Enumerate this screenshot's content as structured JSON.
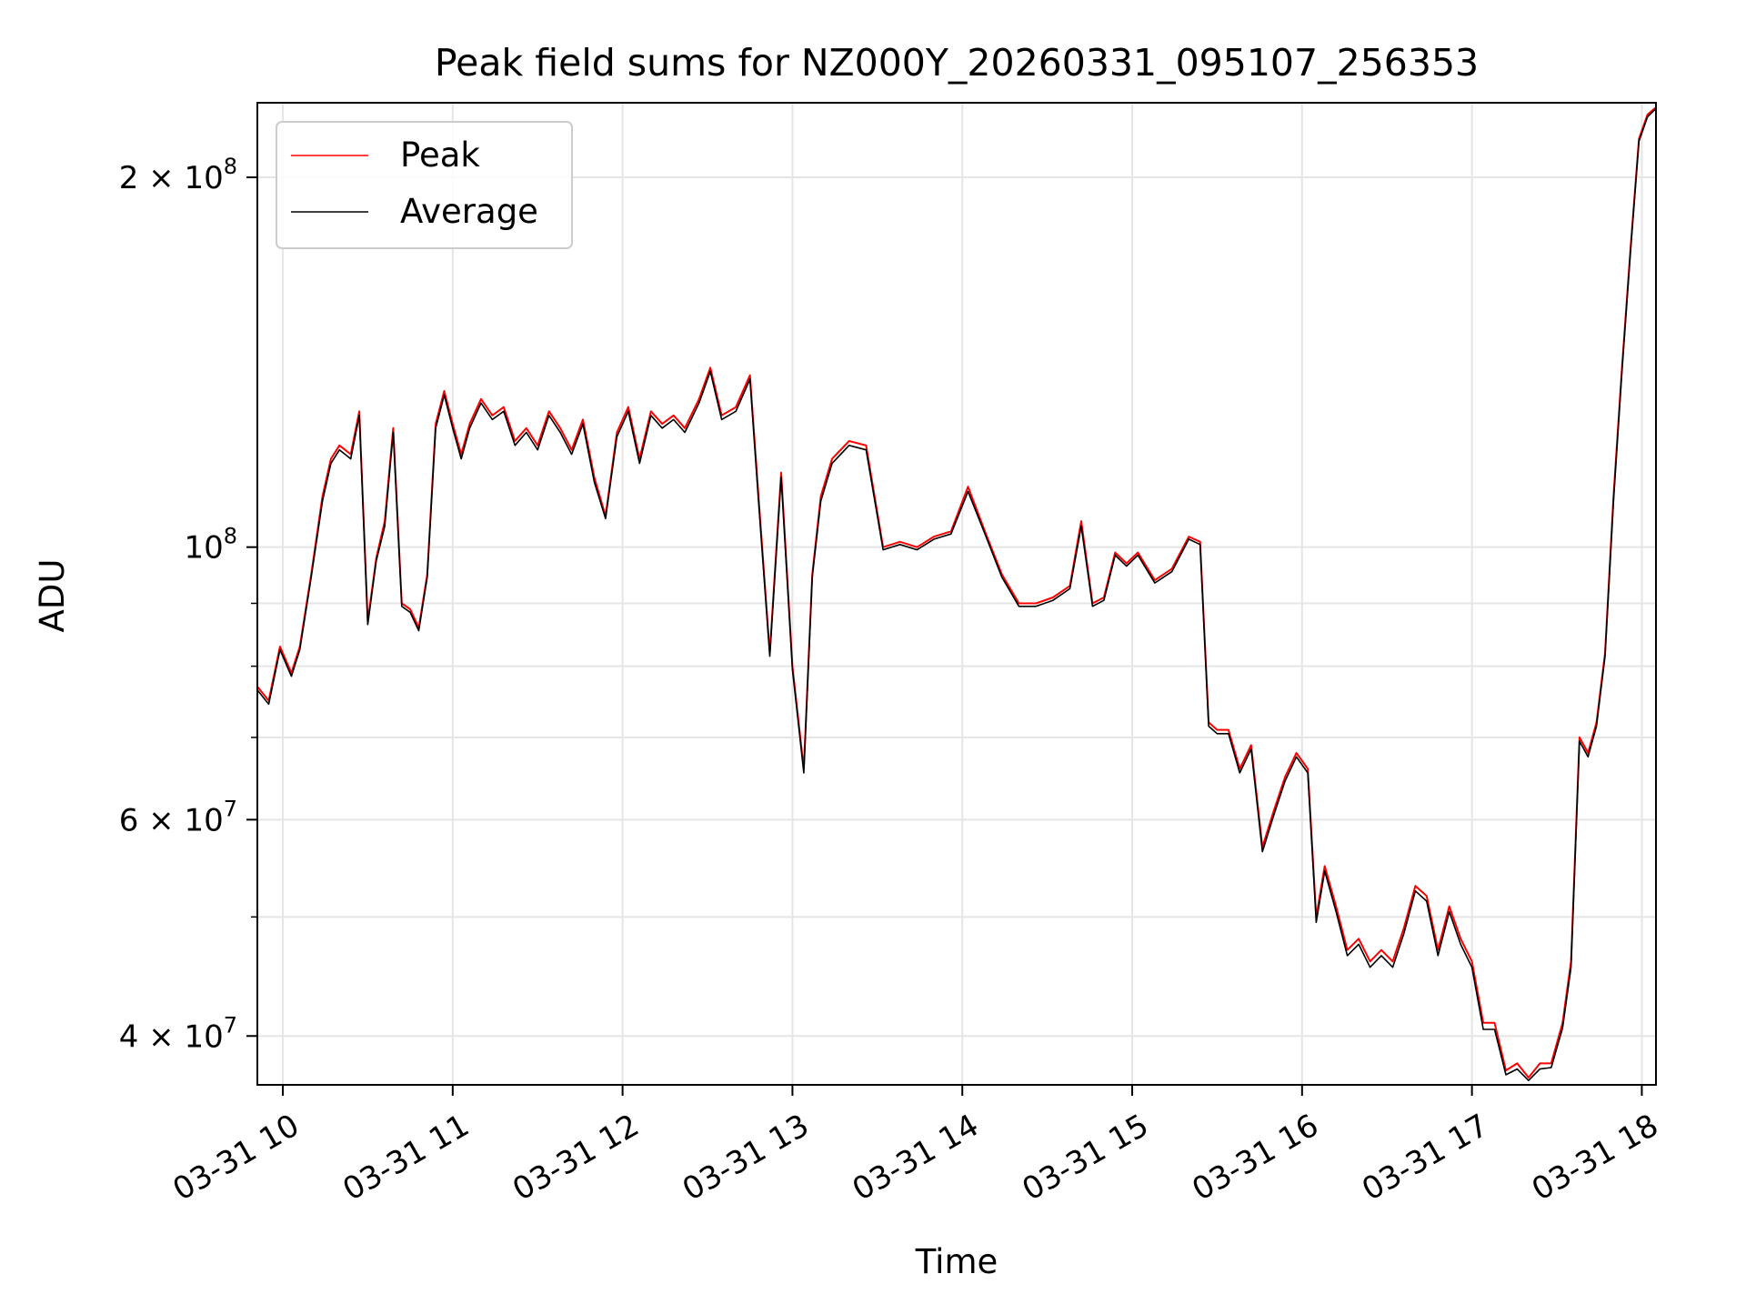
{
  "chart_data": {
    "type": "line",
    "title": "Peak field sums for NZ000Y_20260331_095107_256353",
    "xlabel": "Time",
    "ylabel": "ADU",
    "y_scale": "log",
    "grid": true,
    "legend_placement": "upper-left",
    "xlim": [
      "2026-03-31 09:51",
      "2026-03-31 18:05"
    ],
    "ylim": [
      36500000,
      230000000
    ],
    "x_ticks": [
      {
        "value": "2026-03-31 10:00",
        "label": "03-31 10"
      },
      {
        "value": "2026-03-31 11:00",
        "label": "03-31 11"
      },
      {
        "value": "2026-03-31 12:00",
        "label": "03-31 12"
      },
      {
        "value": "2026-03-31 13:00",
        "label": "03-31 13"
      },
      {
        "value": "2026-03-31 14:00",
        "label": "03-31 14"
      },
      {
        "value": "2026-03-31 15:00",
        "label": "03-31 15"
      },
      {
        "value": "2026-03-31 16:00",
        "label": "03-31 16"
      },
      {
        "value": "2026-03-31 17:00",
        "label": "03-31 17"
      },
      {
        "value": "2026-03-31 18:00",
        "label": "03-31 18"
      }
    ],
    "y_major_ticks": [
      {
        "value": 40000000,
        "mantissa": "4",
        "exponent": "7"
      },
      {
        "value": 60000000,
        "mantissa": "6",
        "exponent": "7"
      },
      {
        "value": 100000000,
        "mantissa": "",
        "exponent": "8"
      },
      {
        "value": 200000000,
        "mantissa": "2",
        "exponent": "8"
      }
    ],
    "y_minor_ticks": [
      50000000,
      70000000,
      80000000,
      90000000
    ],
    "series": [
      {
        "name": "Peak",
        "color": "#ff0000",
        "x": [
          "2026-03-31 09:51",
          "2026-03-31 09:55",
          "2026-03-31 09:59",
          "2026-03-31 10:03",
          "2026-03-31 10:06",
          "2026-03-31 10:10",
          "2026-03-31 10:14",
          "2026-03-31 10:17",
          "2026-03-31 10:20",
          "2026-03-31 10:24",
          "2026-03-31 10:27",
          "2026-03-31 10:30",
          "2026-03-31 10:33",
          "2026-03-31 10:36",
          "2026-03-31 10:39",
          "2026-03-31 10:42",
          "2026-03-31 10:45",
          "2026-03-31 10:48",
          "2026-03-31 10:51",
          "2026-03-31 10:54",
          "2026-03-31 10:57",
          "2026-03-31 11:00",
          "2026-03-31 11:03",
          "2026-03-31 11:06",
          "2026-03-31 11:10",
          "2026-03-31 11:14",
          "2026-03-31 11:18",
          "2026-03-31 11:22",
          "2026-03-31 11:26",
          "2026-03-31 11:30",
          "2026-03-31 11:34",
          "2026-03-31 11:38",
          "2026-03-31 11:42",
          "2026-03-31 11:46",
          "2026-03-31 11:50",
          "2026-03-31 11:54",
          "2026-03-31 11:58",
          "2026-03-31 12:02",
          "2026-03-31 12:06",
          "2026-03-31 12:10",
          "2026-03-31 12:14",
          "2026-03-31 12:18",
          "2026-03-31 12:22",
          "2026-03-31 12:27",
          "2026-03-31 12:31",
          "2026-03-31 12:35",
          "2026-03-31 12:40",
          "2026-03-31 12:45",
          "2026-03-31 12:48",
          "2026-03-31 12:52",
          "2026-03-31 12:56",
          "2026-03-31 13:00",
          "2026-03-31 13:04",
          "2026-03-31 13:07",
          "2026-03-31 13:10",
          "2026-03-31 13:14",
          "2026-03-31 13:20",
          "2026-03-31 13:26",
          "2026-03-31 13:32",
          "2026-03-31 13:38",
          "2026-03-31 13:44",
          "2026-03-31 13:50",
          "2026-03-31 13:56",
          "2026-03-31 14:02",
          "2026-03-31 14:08",
          "2026-03-31 14:14",
          "2026-03-31 14:20",
          "2026-03-31 14:26",
          "2026-03-31 14:32",
          "2026-03-31 14:38",
          "2026-03-31 14:42",
          "2026-03-31 14:46",
          "2026-03-31 14:50",
          "2026-03-31 14:54",
          "2026-03-31 14:58",
          "2026-03-31 15:02",
          "2026-03-31 15:08",
          "2026-03-31 15:14",
          "2026-03-31 15:20",
          "2026-03-31 15:24",
          "2026-03-31 15:27",
          "2026-03-31 15:30",
          "2026-03-31 15:34",
          "2026-03-31 15:38",
          "2026-03-31 15:42",
          "2026-03-31 15:46",
          "2026-03-31 15:50",
          "2026-03-31 15:54",
          "2026-03-31 15:58",
          "2026-03-31 16:02",
          "2026-03-31 16:05",
          "2026-03-31 16:08",
          "2026-03-31 16:12",
          "2026-03-31 16:16",
          "2026-03-31 16:20",
          "2026-03-31 16:24",
          "2026-03-31 16:28",
          "2026-03-31 16:32",
          "2026-03-31 16:36",
          "2026-03-31 16:40",
          "2026-03-31 16:44",
          "2026-03-31 16:48",
          "2026-03-31 16:52",
          "2026-03-31 16:56",
          "2026-03-31 17:00",
          "2026-03-31 17:04",
          "2026-03-31 17:08",
          "2026-03-31 17:12",
          "2026-03-31 17:16",
          "2026-03-31 17:20",
          "2026-03-31 17:24",
          "2026-03-31 17:28",
          "2026-03-31 17:32",
          "2026-03-31 17:35",
          "2026-03-31 17:38",
          "2026-03-31 17:41",
          "2026-03-31 17:44",
          "2026-03-31 17:47",
          "2026-03-31 17:50",
          "2026-03-31 17:53",
          "2026-03-31 17:56",
          "2026-03-31 17:59",
          "2026-03-31 18:02",
          "2026-03-31 18:05"
        ],
        "y": [
          77000000,
          75000000,
          83000000,
          79000000,
          83000000,
          95000000,
          110000000,
          118000000,
          121000000,
          119000000,
          129000000,
          87000000,
          98000000,
          105000000,
          125000000,
          90000000,
          89000000,
          86000000,
          95000000,
          126000000,
          134000000,
          126000000,
          119000000,
          126000000,
          132000000,
          128000000,
          130000000,
          122000000,
          125000000,
          121000000,
          129000000,
          125000000,
          120000000,
          127000000,
          114000000,
          106000000,
          124000000,
          130000000,
          118000000,
          129000000,
          126000000,
          128000000,
          125000000,
          132000000,
          140000000,
          128000000,
          130000000,
          138000000,
          110000000,
          82000000,
          115000000,
          80000000,
          66000000,
          95000000,
          110000000,
          118000000,
          122000000,
          121000000,
          100000000,
          101000000,
          100000000,
          102000000,
          103000000,
          112000000,
          103000000,
          95000000,
          90000000,
          90000000,
          91000000,
          93000000,
          105000000,
          90000000,
          91000000,
          99000000,
          97000000,
          99000000,
          94000000,
          96000000,
          102000000,
          101000000,
          72000000,
          71000000,
          71000000,
          66000000,
          69000000,
          57000000,
          61000000,
          65000000,
          68000000,
          66000000,
          50000000,
          55000000,
          51000000,
          47000000,
          48000000,
          46000000,
          47000000,
          46000000,
          49000000,
          53000000,
          52000000,
          47000000,
          51000000,
          48000000,
          46000000,
          41000000,
          41000000,
          37500000,
          38000000,
          37000000,
          38000000,
          38000000,
          41000000,
          46000000,
          70000000,
          68000000,
          72000000,
          82000000,
          110000000,
          140000000,
          175000000,
          215000000,
          225000000,
          228000000
        ]
      },
      {
        "name": "Average",
        "color": "#000000",
        "x": [
          "2026-03-31 09:51",
          "2026-03-31 09:55",
          "2026-03-31 09:59",
          "2026-03-31 10:03",
          "2026-03-31 10:06",
          "2026-03-31 10:10",
          "2026-03-31 10:14",
          "2026-03-31 10:17",
          "2026-03-31 10:20",
          "2026-03-31 10:24",
          "2026-03-31 10:27",
          "2026-03-31 10:30",
          "2026-03-31 10:33",
          "2026-03-31 10:36",
          "2026-03-31 10:39",
          "2026-03-31 10:42",
          "2026-03-31 10:45",
          "2026-03-31 10:48",
          "2026-03-31 10:51",
          "2026-03-31 10:54",
          "2026-03-31 10:57",
          "2026-03-31 11:00",
          "2026-03-31 11:03",
          "2026-03-31 11:06",
          "2026-03-31 11:10",
          "2026-03-31 11:14",
          "2026-03-31 11:18",
          "2026-03-31 11:22",
          "2026-03-31 11:26",
          "2026-03-31 11:30",
          "2026-03-31 11:34",
          "2026-03-31 11:38",
          "2026-03-31 11:42",
          "2026-03-31 11:46",
          "2026-03-31 11:50",
          "2026-03-31 11:54",
          "2026-03-31 11:58",
          "2026-03-31 12:02",
          "2026-03-31 12:06",
          "2026-03-31 12:10",
          "2026-03-31 12:14",
          "2026-03-31 12:18",
          "2026-03-31 12:22",
          "2026-03-31 12:27",
          "2026-03-31 12:31",
          "2026-03-31 12:35",
          "2026-03-31 12:40",
          "2026-03-31 12:45",
          "2026-03-31 12:48",
          "2026-03-31 12:52",
          "2026-03-31 12:56",
          "2026-03-31 13:00",
          "2026-03-31 13:04",
          "2026-03-31 13:07",
          "2026-03-31 13:10",
          "2026-03-31 13:14",
          "2026-03-31 13:20",
          "2026-03-31 13:26",
          "2026-03-31 13:32",
          "2026-03-31 13:38",
          "2026-03-31 13:44",
          "2026-03-31 13:50",
          "2026-03-31 13:56",
          "2026-03-31 14:02",
          "2026-03-31 14:08",
          "2026-03-31 14:14",
          "2026-03-31 14:20",
          "2026-03-31 14:26",
          "2026-03-31 14:32",
          "2026-03-31 14:38",
          "2026-03-31 14:42",
          "2026-03-31 14:46",
          "2026-03-31 14:50",
          "2026-03-31 14:54",
          "2026-03-31 14:58",
          "2026-03-31 15:02",
          "2026-03-31 15:08",
          "2026-03-31 15:14",
          "2026-03-31 15:20",
          "2026-03-31 15:24",
          "2026-03-31 15:27",
          "2026-03-31 15:30",
          "2026-03-31 15:34",
          "2026-03-31 15:38",
          "2026-03-31 15:42",
          "2026-03-31 15:46",
          "2026-03-31 15:50",
          "2026-03-31 15:54",
          "2026-03-31 15:58",
          "2026-03-31 16:02",
          "2026-03-31 16:05",
          "2026-03-31 16:08",
          "2026-03-31 16:12",
          "2026-03-31 16:16",
          "2026-03-31 16:20",
          "2026-03-31 16:24",
          "2026-03-31 16:28",
          "2026-03-31 16:32",
          "2026-03-31 16:36",
          "2026-03-31 16:40",
          "2026-03-31 16:44",
          "2026-03-31 16:48",
          "2026-03-31 16:52",
          "2026-03-31 16:56",
          "2026-03-31 17:00",
          "2026-03-31 17:04",
          "2026-03-31 17:08",
          "2026-03-31 17:12",
          "2026-03-31 17:16",
          "2026-03-31 17:20",
          "2026-03-31 17:24",
          "2026-03-31 17:28",
          "2026-03-31 17:32",
          "2026-03-31 17:35",
          "2026-03-31 17:38",
          "2026-03-31 17:41",
          "2026-03-31 17:44",
          "2026-03-31 17:47",
          "2026-03-31 17:50",
          "2026-03-31 17:53",
          "2026-03-31 17:56",
          "2026-03-31 17:59",
          "2026-03-31 18:02",
          "2026-03-31 18:05"
        ],
        "y": [
          76500000,
          74500000,
          82500000,
          78500000,
          82500000,
          94500000,
          109000000,
          117000000,
          120000000,
          118000000,
          128000000,
          86500000,
          97500000,
          104000000,
          124000000,
          89500000,
          88500000,
          85500000,
          94500000,
          125000000,
          133000000,
          125000000,
          118000000,
          125000000,
          131000000,
          127000000,
          129000000,
          121000000,
          124000000,
          120000000,
          128000000,
          124000000,
          119000000,
          126000000,
          113000000,
          105500000,
          123000000,
          129000000,
          117000000,
          128000000,
          125000000,
          127000000,
          124000000,
          131000000,
          139000000,
          127000000,
          129000000,
          137000000,
          109000000,
          81500000,
          114000000,
          79500000,
          65500000,
          94500000,
          109000000,
          117000000,
          121000000,
          120000000,
          99500000,
          100500000,
          99500000,
          101500000,
          102500000,
          111000000,
          102500000,
          94500000,
          89500000,
          89500000,
          90500000,
          92500000,
          104000000,
          89500000,
          90500000,
          98500000,
          96500000,
          98500000,
          93500000,
          95500000,
          101500000,
          100500000,
          71500000,
          70500000,
          70500000,
          65500000,
          68500000,
          56500000,
          60500000,
          64500000,
          67500000,
          65500000,
          49500000,
          54500000,
          50500000,
          46500000,
          47500000,
          45500000,
          46500000,
          45500000,
          48500000,
          52500000,
          51500000,
          46500000,
          50500000,
          47500000,
          45500000,
          40500000,
          40500000,
          37200000,
          37600000,
          36800000,
          37600000,
          37700000,
          40600000,
          45500000,
          69500000,
          67500000,
          71500000,
          81500000,
          109000000,
          139000000,
          174000000,
          214000000,
          224000000,
          227500000
        ]
      }
    ]
  }
}
